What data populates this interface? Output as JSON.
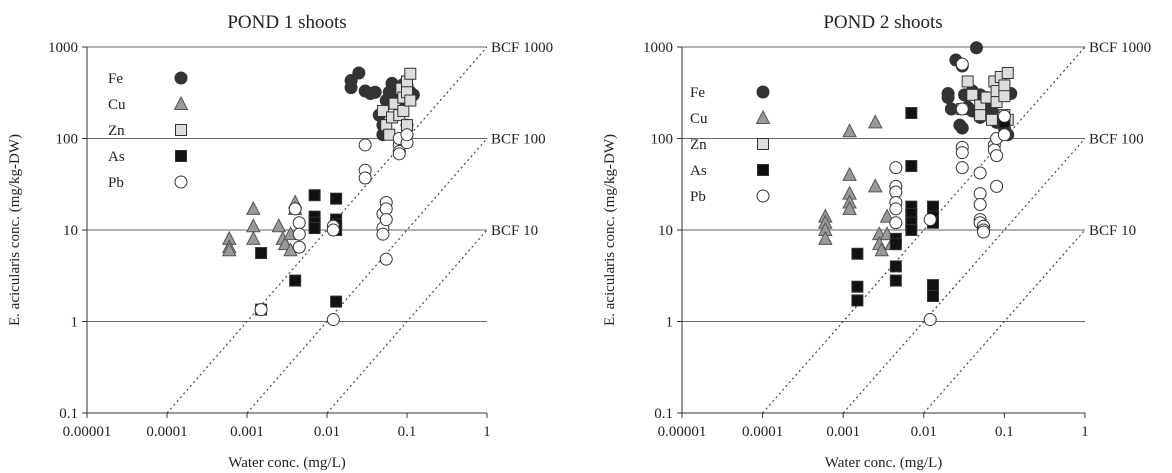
{
  "chart_data": [
    {
      "type": "scatter",
      "title": "POND 1 shoots",
      "xlabel": "Water conc. (mg/L)",
      "ylabel": "E. acicularis conc. (mg/kg-DW)",
      "xscale": "log",
      "yscale": "log",
      "xlim": [
        1e-05,
        1
      ],
      "ylim": [
        0.1,
        1000
      ],
      "x_ticks": [
        "0.00001",
        "0.0001",
        "0.001",
        "0.01",
        "0.1",
        "1"
      ],
      "y_ticks": [
        "0.1",
        "1",
        "10",
        "100",
        "1000"
      ],
      "hlines": [
        1,
        10,
        100,
        1000
      ],
      "legend_position": "top-left",
      "bcf_lines": [
        {
          "label": "BCF 1000",
          "factor": 1000
        },
        {
          "label": "BCF 100",
          "factor": 100
        },
        {
          "label": "BCF 10",
          "factor": 10
        }
      ],
      "series": [
        {
          "name": "Fe",
          "marker": "circle",
          "color": "#333333",
          "points": [
            [
              0.02,
              430
            ],
            [
              0.02,
              360
            ],
            [
              0.025,
              520
            ],
            [
              0.03,
              330
            ],
            [
              0.035,
              310
            ],
            [
              0.04,
              320
            ],
            [
              0.045,
              180
            ],
            [
              0.05,
              110
            ],
            [
              0.05,
              140
            ],
            [
              0.055,
              260
            ],
            [
              0.06,
              320
            ],
            [
              0.065,
              400
            ],
            [
              0.07,
              300
            ],
            [
              0.08,
              250
            ],
            [
              0.09,
              390
            ],
            [
              0.1,
              380
            ],
            [
              0.1,
              140
            ],
            [
              0.11,
              320
            ],
            [
              0.12,
              300
            ]
          ]
        },
        {
          "name": "Cu",
          "marker": "triangle",
          "color": "#999999",
          "points": [
            [
              0.0006,
              8
            ],
            [
              0.0006,
              6.5
            ],
            [
              0.0006,
              6
            ],
            [
              0.0012,
              17
            ],
            [
              0.0012,
              11
            ],
            [
              0.0012,
              8
            ],
            [
              0.0025,
              11
            ],
            [
              0.0028,
              8
            ],
            [
              0.003,
              7
            ],
            [
              0.0035,
              9
            ],
            [
              0.0035,
              6
            ],
            [
              0.004,
              20
            ],
            [
              0.004,
              17
            ]
          ]
        },
        {
          "name": "Zn",
          "marker": "square",
          "color": "#dddddd",
          "points": [
            [
              0.05,
              200
            ],
            [
              0.055,
              140
            ],
            [
              0.06,
              110
            ],
            [
              0.065,
              170
            ],
            [
              0.07,
              240
            ],
            [
              0.08,
              180
            ],
            [
              0.085,
              350
            ],
            [
              0.09,
              200
            ],
            [
              0.09,
              280
            ],
            [
              0.1,
              420
            ],
            [
              0.1,
              320
            ],
            [
              0.11,
              510
            ],
            [
              0.11,
              260
            ],
            [
              0.1,
              140
            ]
          ]
        },
        {
          "name": "As",
          "marker": "square",
          "color": "#111111",
          "points": [
            [
              0.0015,
              1.35
            ],
            [
              0.0015,
              5.6
            ],
            [
              0.004,
              2.8
            ],
            [
              0.007,
              24
            ],
            [
              0.007,
              14
            ],
            [
              0.007,
              12
            ],
            [
              0.007,
              10.5
            ],
            [
              0.013,
              22
            ],
            [
              0.013,
              13
            ],
            [
              0.013,
              11.5
            ],
            [
              0.013,
              10
            ],
            [
              0.013,
              1.65
            ]
          ]
        },
        {
          "name": "Pb",
          "marker": "circle",
          "color": "#ffffff",
          "points": [
            [
              0.0015,
              1.35
            ],
            [
              0.004,
              17
            ],
            [
              0.0045,
              12
            ],
            [
              0.0045,
              9
            ],
            [
              0.0045,
              6.5
            ],
            [
              0.012,
              11
            ],
            [
              0.012,
              10
            ],
            [
              0.012,
              1.05
            ],
            [
              0.03,
              85
            ],
            [
              0.03,
              45
            ],
            [
              0.03,
              37
            ],
            [
              0.05,
              15
            ],
            [
              0.05,
              10.5
            ],
            [
              0.05,
              9
            ],
            [
              0.055,
              20
            ],
            [
              0.055,
              17
            ],
            [
              0.055,
              13
            ],
            [
              0.055,
              4.8
            ],
            [
              0.08,
              85
            ],
            [
              0.08,
              72
            ],
            [
              0.08,
              68
            ],
            [
              0.08,
              100
            ],
            [
              0.1,
              90
            ],
            [
              0.1,
              110
            ]
          ]
        }
      ]
    },
    {
      "type": "scatter",
      "title": "POND 2 shoots",
      "xlabel": "Water conc. (mg/L)",
      "ylabel": "E. acicularis conc. (mg/kg-DW)",
      "xscale": "log",
      "yscale": "log",
      "xlim": [
        1e-05,
        1
      ],
      "ylim": [
        0.1,
        1000
      ],
      "x_ticks": [
        "0.00001",
        "0.0001",
        "0.001",
        "0.01",
        "0.1",
        "1"
      ],
      "y_ticks": [
        "0.1",
        "1",
        "10",
        "100",
        "1000"
      ],
      "hlines": [
        1,
        10,
        100,
        1000
      ],
      "legend_position": "top-left",
      "bcf_lines": [
        {
          "label": "BCF 1000",
          "factor": 1000
        },
        {
          "label": "BCF 100",
          "factor": 100
        },
        {
          "label": "BCF 10",
          "factor": 10
        }
      ],
      "series": [
        {
          "name": "Fe",
          "marker": "circle",
          "color": "#333333",
          "points": [
            [
              0.02,
              310
            ],
            [
              0.02,
              280
            ],
            [
              0.022,
              210
            ],
            [
              0.025,
              720
            ],
            [
              0.028,
              140
            ],
            [
              0.03,
              620
            ],
            [
              0.03,
              130
            ],
            [
              0.032,
              300
            ],
            [
              0.035,
              220
            ],
            [
              0.04,
              330
            ],
            [
              0.04,
              200
            ],
            [
              0.045,
              980
            ],
            [
              0.05,
              300
            ],
            [
              0.05,
              170
            ],
            [
              0.06,
              280
            ],
            [
              0.065,
              250
            ],
            [
              0.07,
              200
            ],
            [
              0.08,
              150
            ],
            [
              0.1,
              320
            ],
            [
              0.1,
              130
            ],
            [
              0.11,
              110
            ],
            [
              0.1,
              160
            ],
            [
              0.12,
              310
            ]
          ]
        },
        {
          "name": "Cu",
          "marker": "triangle",
          "color": "#999999",
          "points": [
            [
              0.0006,
              14
            ],
            [
              0.0006,
              12
            ],
            [
              0.0006,
              10
            ],
            [
              0.0006,
              8
            ],
            [
              0.0012,
              120
            ],
            [
              0.0012,
              40
            ],
            [
              0.0012,
              25
            ],
            [
              0.0012,
              20
            ],
            [
              0.0012,
              17
            ],
            [
              0.0025,
              150
            ],
            [
              0.0025,
              30
            ],
            [
              0.0028,
              9
            ],
            [
              0.0028,
              7
            ],
            [
              0.003,
              6
            ],
            [
              0.0035,
              14
            ],
            [
              0.0035,
              9
            ],
            [
              0.004,
              7
            ]
          ]
        },
        {
          "name": "Zn",
          "marker": "square",
          "color": "#dddddd",
          "points": [
            [
              0.03,
              210
            ],
            [
              0.035,
              420
            ],
            [
              0.04,
              300
            ],
            [
              0.05,
              230
            ],
            [
              0.05,
              180
            ],
            [
              0.06,
              280
            ],
            [
              0.07,
              160
            ],
            [
              0.075,
              420
            ],
            [
              0.08,
              250
            ],
            [
              0.08,
              330
            ],
            [
              0.09,
              470
            ],
            [
              0.1,
              380
            ],
            [
              0.1,
              290
            ],
            [
              0.1,
              180
            ],
            [
              0.11,
              520
            ],
            [
              0.11,
              160
            ]
          ]
        },
        {
          "name": "As",
          "marker": "square",
          "color": "#111111",
          "points": [
            [
              0.0015,
              5.5
            ],
            [
              0.0015,
              2.4
            ],
            [
              0.0015,
              1.7
            ],
            [
              0.0045,
              8
            ],
            [
              0.0045,
              7
            ],
            [
              0.0045,
              4
            ],
            [
              0.0045,
              2.8
            ],
            [
              0.007,
              190
            ],
            [
              0.007,
              50
            ],
            [
              0.007,
              18
            ],
            [
              0.007,
              15
            ],
            [
              0.007,
              12
            ],
            [
              0.007,
              10
            ],
            [
              0.013,
              18
            ],
            [
              0.013,
              14
            ],
            [
              0.013,
              12
            ],
            [
              0.013,
              2.5
            ],
            [
              0.013,
              1.9
            ],
            [
              0.1,
              150
            ]
          ]
        },
        {
          "name": "Pb",
          "marker": "circle",
          "color": "#ffffff",
          "points": [
            [
              0.0045,
              48
            ],
            [
              0.0045,
              30
            ],
            [
              0.0045,
              26
            ],
            [
              0.0045,
              20
            ],
            [
              0.0045,
              17
            ],
            [
              0.0045,
              12
            ],
            [
              0.012,
              1.05
            ],
            [
              0.012,
              13
            ],
            [
              0.03,
              650
            ],
            [
              0.03,
              210
            ],
            [
              0.03,
              80
            ],
            [
              0.03,
              70
            ],
            [
              0.03,
              48
            ],
            [
              0.05,
              42
            ],
            [
              0.05,
              25
            ],
            [
              0.05,
              19
            ],
            [
              0.05,
              13
            ],
            [
              0.05,
              12
            ],
            [
              0.055,
              11
            ],
            [
              0.055,
              10
            ],
            [
              0.055,
              9.5
            ],
            [
              0.075,
              85
            ],
            [
              0.075,
              75
            ],
            [
              0.08,
              65
            ],
            [
              0.08,
              30
            ],
            [
              0.08,
              100
            ],
            [
              0.1,
              110
            ],
            [
              0.1,
              175
            ]
          ]
        }
      ]
    }
  ]
}
